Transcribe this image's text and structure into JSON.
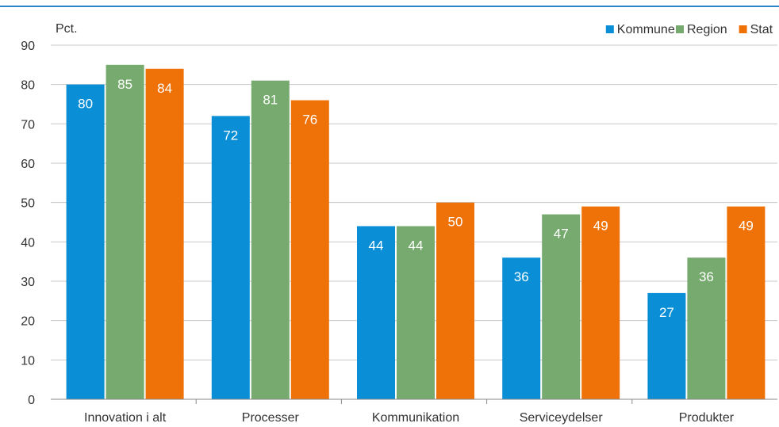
{
  "chart_data": {
    "type": "bar",
    "title": "",
    "unit_label": "Pct.",
    "xlabel": "",
    "ylabel": "",
    "ylim": [
      0,
      90
    ],
    "yticks": [
      0,
      10,
      20,
      30,
      40,
      50,
      60,
      70,
      80,
      90
    ],
    "grid": true,
    "legend_position": "top-right",
    "categories": [
      "Innovation i alt",
      "Processer",
      "Kommunikation",
      "Serviceydelser",
      "Produkter"
    ],
    "series": [
      {
        "name": "Kommune",
        "color": "#0a8fd6",
        "values": [
          80,
          72,
          44,
          36,
          27
        ]
      },
      {
        "name": "Region",
        "color": "#76aa6e",
        "values": [
          85,
          81,
          44,
          47,
          36
        ]
      },
      {
        "name": "Stat",
        "color": "#ef7208",
        "values": [
          84,
          76,
          50,
          49,
          49
        ]
      }
    ],
    "data_labels": [
      [
        "80",
        "72",
        "44",
        "36",
        "27"
      ],
      [
        "85",
        "81",
        "44",
        "47",
        "36"
      ],
      [
        "84",
        "76",
        "50",
        "49",
        "49"
      ]
    ],
    "colors": {
      "top_rule": "#2a86c8",
      "grid": "#c8c8c8",
      "axis": "#888888"
    }
  }
}
